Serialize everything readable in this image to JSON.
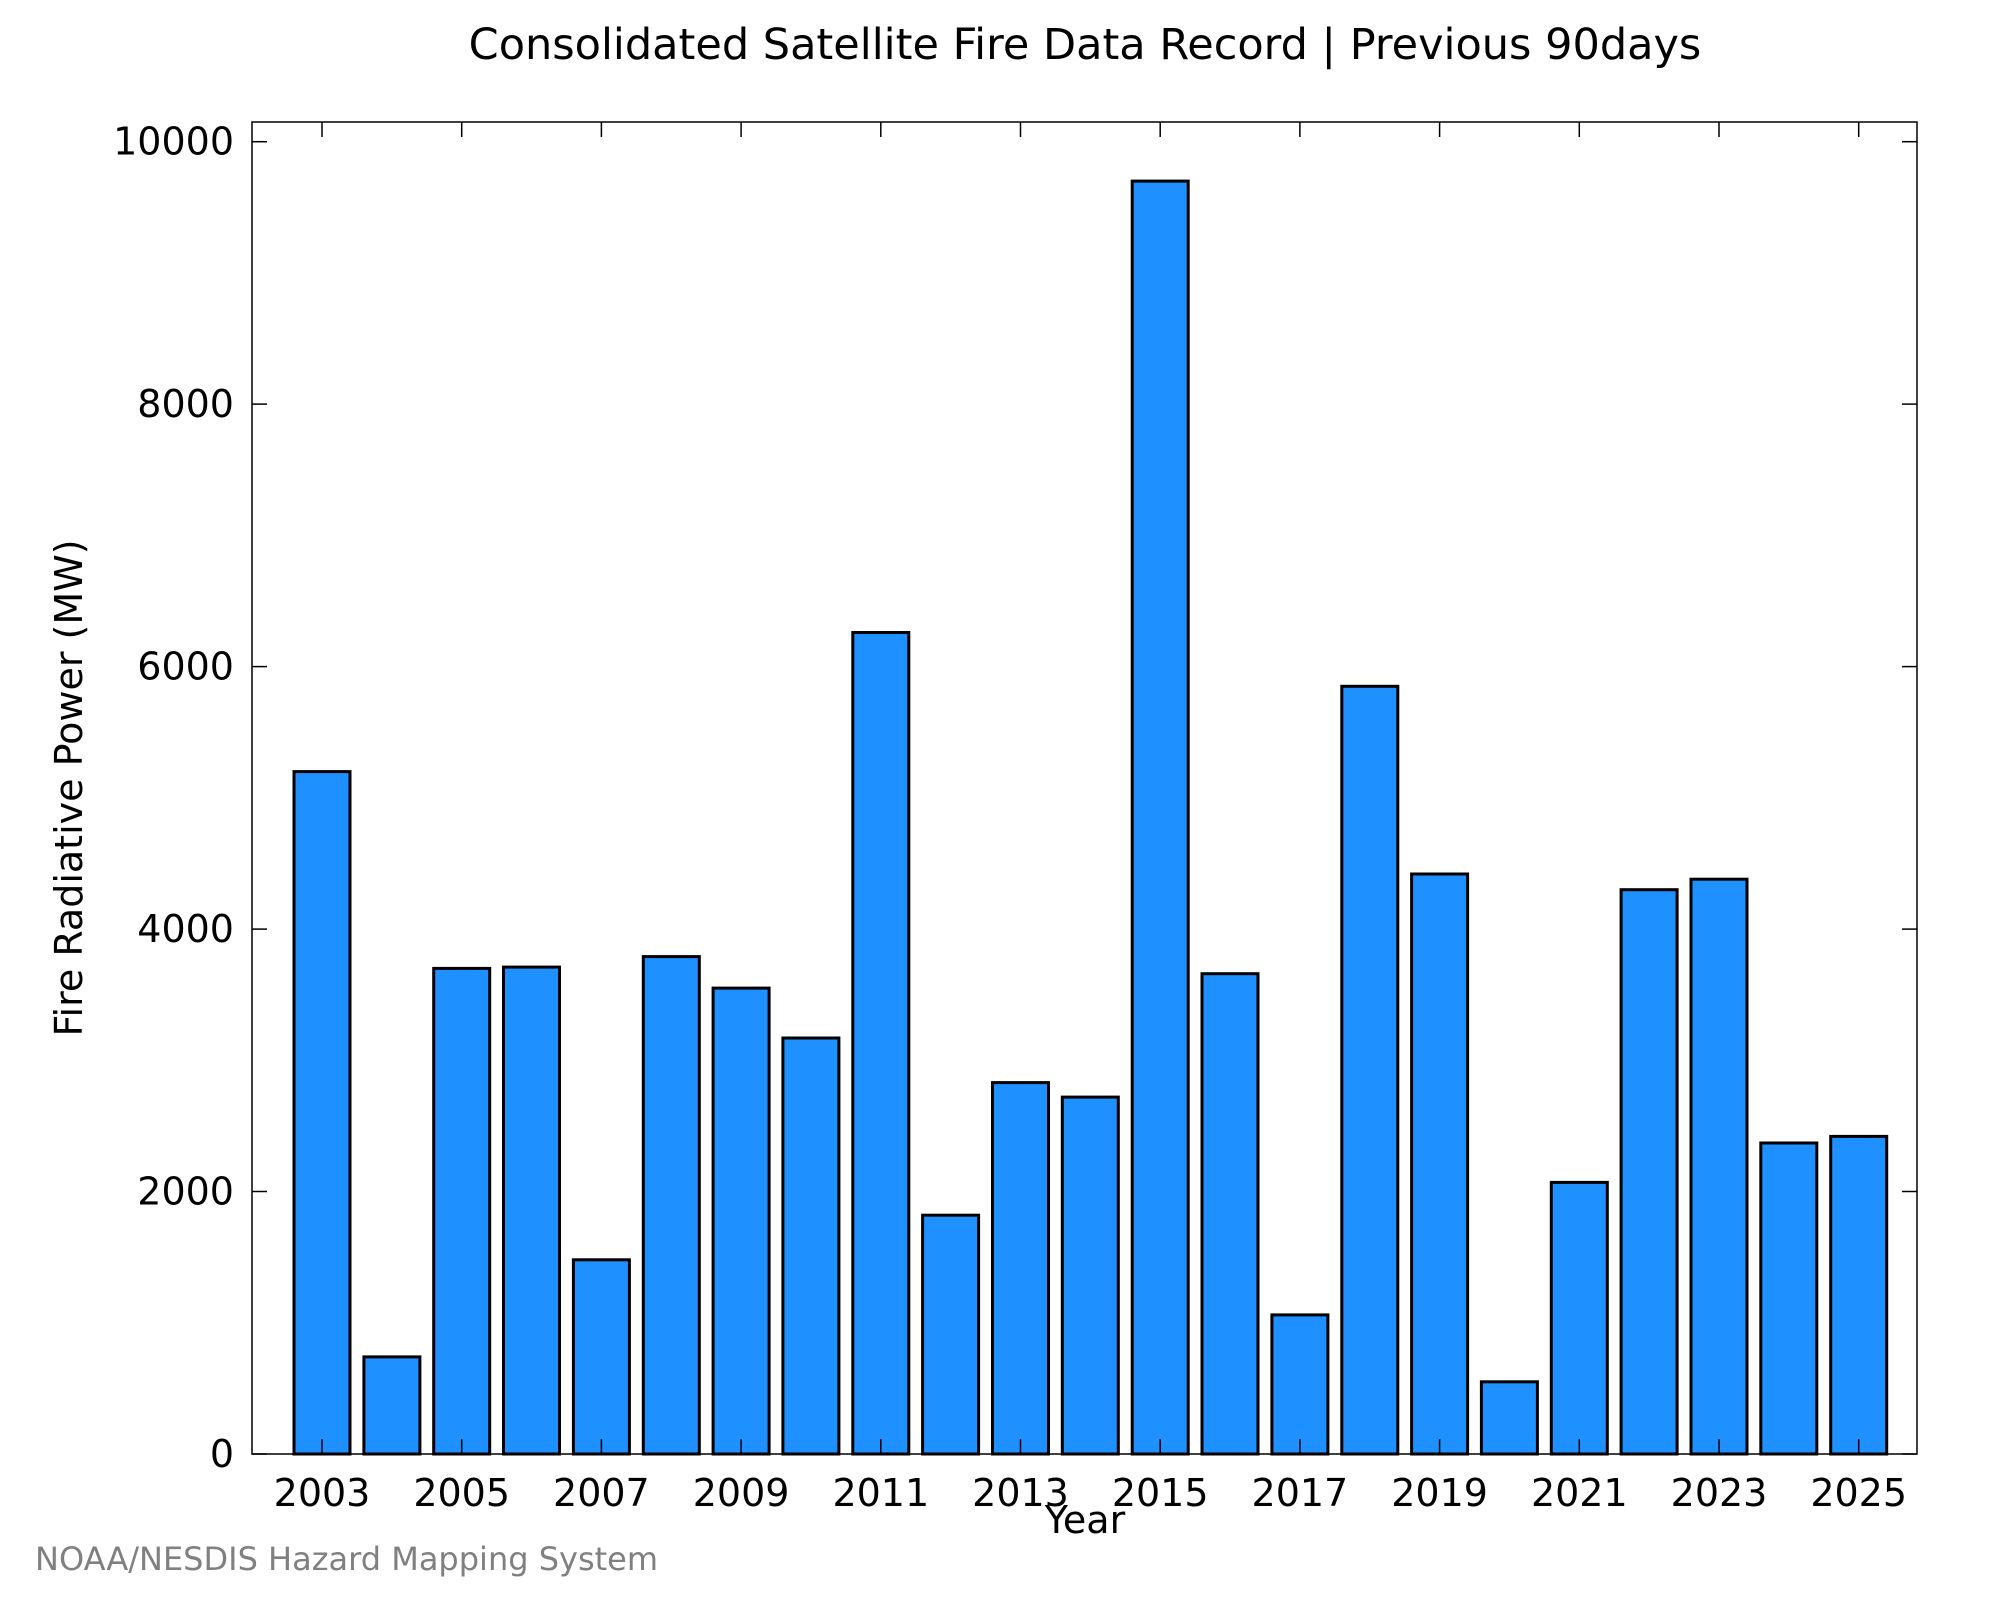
{
  "chart_data": {
    "type": "bar",
    "title": "Consolidated Satellite Fire Data Record | Previous 90days",
    "xlabel": "Year",
    "ylabel": "Fire Radiative Power (MW)",
    "categories": [
      "2003",
      "2004",
      "2005",
      "2006",
      "2007",
      "2008",
      "2009",
      "2010",
      "2011",
      "2012",
      "2013",
      "2014",
      "2015",
      "2016",
      "2017",
      "2018",
      "2019",
      "2020",
      "2021",
      "2022",
      "2023",
      "2024",
      "2025"
    ],
    "values": [
      5200,
      740,
      3700,
      3710,
      1480,
      3790,
      3550,
      3170,
      6260,
      1820,
      2830,
      2720,
      9700,
      3660,
      1060,
      5850,
      4420,
      550,
      2070,
      4300,
      4380,
      2370,
      2420
    ],
    "xtick_labels": [
      "2003",
      "2005",
      "2007",
      "2009",
      "2011",
      "2013",
      "2015",
      "2017",
      "2019",
      "2021",
      "2023",
      "2025"
    ],
    "ytick_labels": [
      "0",
      "2000",
      "4000",
      "6000",
      "8000",
      "10000"
    ],
    "ylim": [
      0,
      10150
    ],
    "grid": false,
    "bar_color": "#1e90ff",
    "bar_edge_color": "#000000"
  },
  "credit": "NOAA/NESDIS Hazard Mapping System"
}
